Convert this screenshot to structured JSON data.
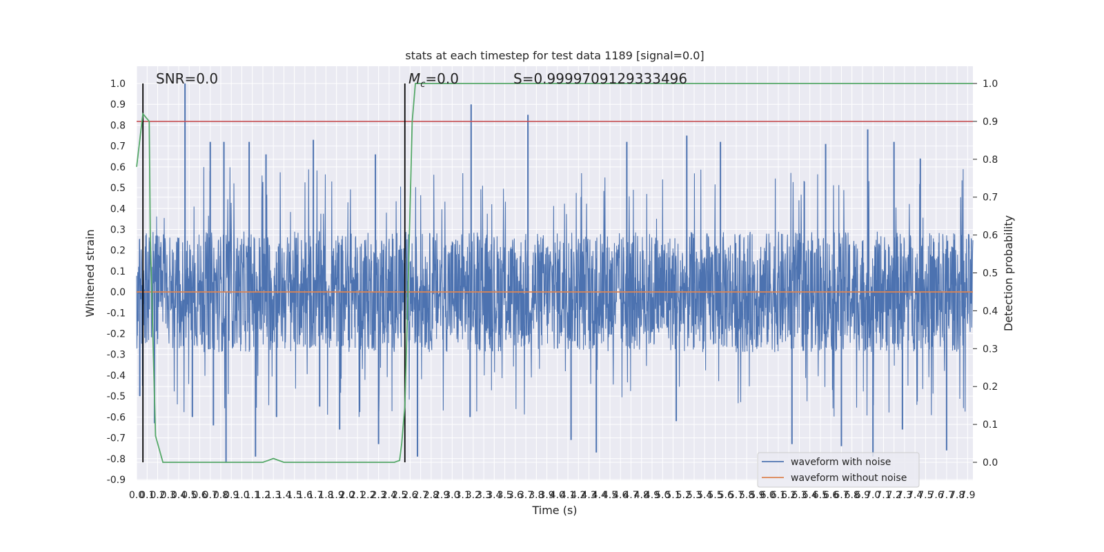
{
  "chart_data": {
    "type": "line",
    "title": "stats at each timestep for test data 1189 [signal=0.0]",
    "xlabel": "Time (s)",
    "ylabel": "Whitened strain",
    "ylabel_right": "Detection probability",
    "xlim": [
      0.0,
      7.95
    ],
    "ylim": [
      -0.9,
      1.0
    ],
    "ylim_right": [
      0.0,
      1.0
    ],
    "grid": true,
    "x_ticks": [
      0.0,
      0.1,
      0.2,
      0.3,
      0.4,
      0.5,
      0.6,
      0.7,
      0.8,
      0.9,
      1.0,
      1.1,
      1.2,
      1.3,
      1.4,
      1.5,
      1.6,
      1.7,
      1.8,
      1.9,
      2.0,
      2.1,
      2.2,
      2.3,
      2.4,
      2.5,
      2.6,
      2.7,
      2.8,
      2.9,
      3.0,
      3.1,
      3.2,
      3.3,
      3.4,
      3.5,
      3.6,
      3.7,
      3.8,
      3.9,
      4.0,
      4.1,
      4.2,
      4.3,
      4.4,
      4.5,
      4.6,
      4.7,
      4.8,
      4.9,
      5.0,
      5.1,
      5.2,
      5.3,
      5.4,
      5.5,
      5.6,
      5.7,
      5.8,
      5.9,
      6.0,
      6.1,
      6.2,
      6.3,
      6.4,
      6.5,
      6.6,
      6.7,
      6.8,
      6.9,
      7.0,
      7.1,
      7.2,
      7.3,
      7.4,
      7.5,
      7.6,
      7.7,
      7.8,
      7.9
    ],
    "y_ticks": [
      1.0,
      0.9,
      0.8,
      0.7,
      0.6,
      0.5,
      0.4,
      0.3,
      0.2,
      0.1,
      0.0,
      -0.1,
      -0.2,
      -0.3,
      -0.4,
      -0.5,
      -0.6,
      -0.7,
      -0.8,
      -0.9
    ],
    "y_ticks_right": [
      1.0,
      0.9,
      0.8,
      0.7,
      0.6,
      0.5,
      0.4,
      0.3,
      0.2,
      0.1,
      0.0
    ],
    "annotations": {
      "snr": "SNR=0.0",
      "mc_symbol": "M",
      "mc_subscript": "c",
      "mc_value": "=0.0",
      "s": "S=0.9999709129333496"
    },
    "vlines_x": [
      0.06,
      2.55
    ],
    "threshold_right": 0.9,
    "series": [
      {
        "name": "waveform with noise",
        "color": "#4c72b0",
        "axis": "left",
        "envelope": "dense noise, core band approx ±0.27, peaks reaching approx 1.0 and -0.82",
        "peaks_x": [
          0.46,
          0.7,
          0.83,
          1.07,
          1.23,
          1.68,
          2.27,
          3.18,
          3.72,
          4.66,
          5.23,
          5.55,
          6.55,
          6.95,
          7.2,
          7.45
        ],
        "peaks_y": [
          1.0,
          0.72,
          0.72,
          0.72,
          0.66,
          0.73,
          0.66,
          0.9,
          0.85,
          0.72,
          0.75,
          0.72,
          0.71,
          0.78,
          0.72,
          0.64
        ],
        "troughs_x": [
          0.03,
          0.17,
          0.53,
          0.73,
          0.85,
          1.13,
          1.33,
          1.74,
          1.93,
          2.3,
          2.67,
          3.17,
          4.13,
          4.37,
          5.13,
          6.23,
          6.7,
          7.0,
          7.28,
          7.7
        ],
        "troughs_y": [
          -0.5,
          -0.63,
          -0.6,
          -0.64,
          -0.82,
          -0.79,
          -0.6,
          -0.55,
          -0.66,
          -0.73,
          -0.79,
          -0.6,
          -0.71,
          -0.77,
          -0.62,
          -0.73,
          -0.74,
          -0.79,
          -0.66,
          -0.76
        ]
      },
      {
        "name": "waveform without noise",
        "color": "#dd8452",
        "axis": "left",
        "x": [
          0.0,
          7.95
        ],
        "y": [
          0.0,
          0.0
        ]
      },
      {
        "name": "detection probability",
        "color": "#55a868",
        "axis": "right",
        "x": [
          0.0,
          0.06,
          0.12,
          0.13,
          0.18,
          0.25,
          1.2,
          1.25,
          1.3,
          1.4,
          1.5,
          2.45,
          2.5,
          2.52,
          2.55,
          2.58,
          2.62,
          2.65,
          3.0,
          7.95
        ],
        "y": [
          0.78,
          0.92,
          0.9,
          0.6,
          0.07,
          0.0,
          0.0,
          0.005,
          0.01,
          0.0,
          0.0,
          0.0,
          0.005,
          0.05,
          0.15,
          0.45,
          0.9,
          1.0,
          1.0,
          1.0
        ]
      },
      {
        "name": "threshold",
        "color": "#c44e52",
        "axis": "right",
        "x": [
          0.0,
          7.95
        ],
        "y": [
          0.9,
          0.9
        ]
      }
    ],
    "legend": {
      "placement": "lower-right",
      "entries": [
        {
          "label": "waveform with noise",
          "color": "#4c72b0"
        },
        {
          "label": "waveform without noise",
          "color": "#dd8452"
        }
      ]
    }
  }
}
